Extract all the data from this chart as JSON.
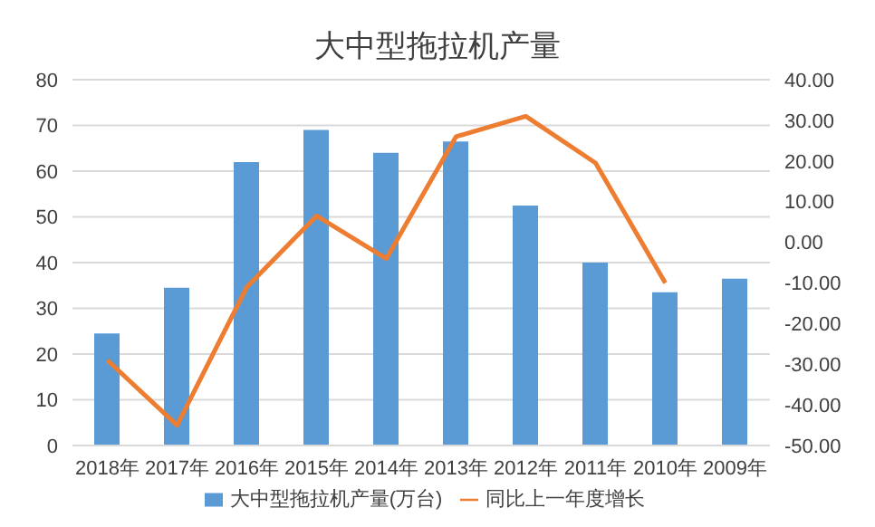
{
  "chart_data": {
    "type": "bar",
    "title": "大中型拖拉机产量",
    "categories": [
      "2018年",
      "2017年",
      "2016年",
      "2015年",
      "2014年",
      "2013年",
      "2012年",
      "2011年",
      "2010年",
      "2009年"
    ],
    "series": [
      {
        "name": "大中型拖拉机产量(万台)",
        "color": "#5b9bd5",
        "values": [
          24.5,
          34.5,
          62,
          69,
          64,
          66.5,
          52.5,
          40,
          33.5,
          36.5
        ]
      },
      {
        "name": "同比上一年度增长",
        "type": "line",
        "axis": "y2",
        "color": "#ed7d31",
        "values": [
          -29,
          -45,
          -11,
          6.5,
          -4,
          26,
          31,
          19.5,
          -10,
          null
        ]
      }
    ],
    "ylim": [
      0,
      80
    ],
    "yticks": [
      0,
      10,
      20,
      30,
      40,
      50,
      60,
      70,
      80
    ],
    "y2lim": [
      -50,
      40
    ],
    "y2ticks": [
      {
        "value": -50,
        "label": "-50.00"
      },
      {
        "value": -40,
        "label": "-40.00"
      },
      {
        "value": -30,
        "label": "-30.00"
      },
      {
        "value": -20,
        "label": "-20.00"
      },
      {
        "value": -10,
        "label": "-10.00"
      },
      {
        "value": 0,
        "label": "0.00"
      },
      {
        "value": 10,
        "label": "10.00"
      },
      {
        "value": 20,
        "label": "20.00"
      },
      {
        "value": 30,
        "label": "30.00"
      },
      {
        "value": 40,
        "label": "40.00"
      }
    ],
    "grid": "y",
    "legend": "bottom",
    "marker": "none"
  }
}
